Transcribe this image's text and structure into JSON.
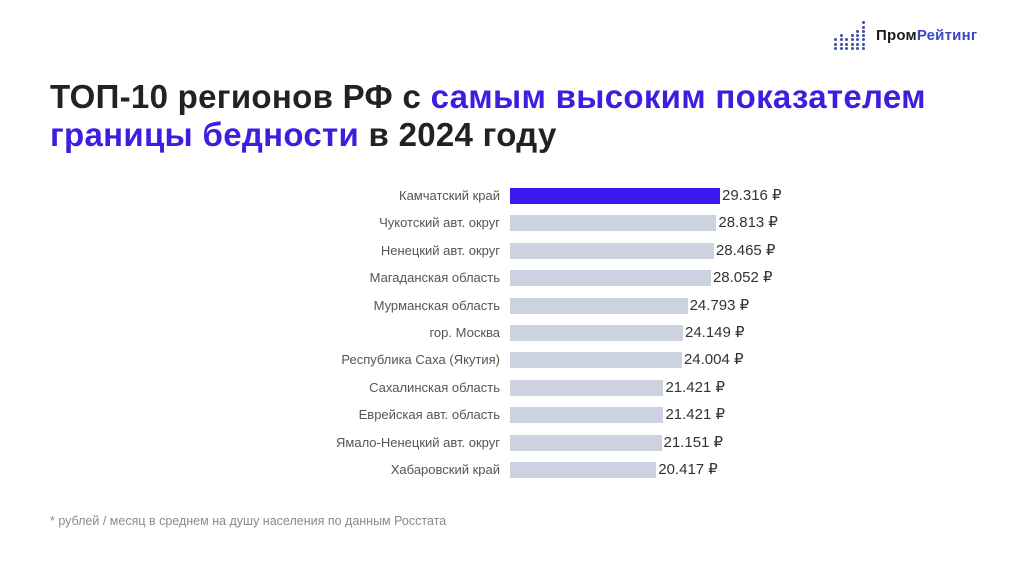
{
  "logo": {
    "part1": "Пром",
    "part2": "Рейтинг",
    "icon": "dot-bars-icon"
  },
  "title": {
    "line1_plain": "ТОП-10 регионов РФ с ",
    "line1_highlight": "самым высоким показателем",
    "line2_highlight": "границы бедности",
    "line2_plain": " в 2024 году"
  },
  "colors": {
    "accent": "#3b17f0",
    "bar": "#cdd2e0",
    "title_highlight": "#3a1fe0"
  },
  "footnote": "* рублей / месяц в среднем на душу населения по данным Росстата",
  "chart_data": {
    "type": "bar",
    "orientation": "horizontal",
    "title": "ТОП-10 регионов РФ с самым высоким показателем границы бедности в 2024 году",
    "xlabel": "",
    "ylabel": "",
    "unit": "₽",
    "categories": [
      "Камчатский край",
      "Чукотский авт. округ",
      "Ненецкий авт. округ",
      "Магаданская область",
      "Мурманская область",
      "гор. Москва",
      "Республика Саха (Якутия)",
      "Сахалинская область",
      "Еврейская авт. область",
      "Ямало-Ненецкий авт. округ",
      "Хабаровский край"
    ],
    "values": [
      29316,
      28813,
      28465,
      28052,
      24793,
      24149,
      24004,
      21421,
      21421,
      21151,
      20417
    ],
    "value_labels": [
      "29.316 ₽",
      "28.813 ₽",
      "28.465 ₽",
      "28.052 ₽",
      "24.793 ₽",
      "24.149 ₽",
      "24.004 ₽",
      "21.421 ₽",
      "21.421 ₽",
      "21.151 ₽",
      "20.417 ₽"
    ],
    "highlighted_index": 0,
    "grid": false,
    "legend": null
  }
}
